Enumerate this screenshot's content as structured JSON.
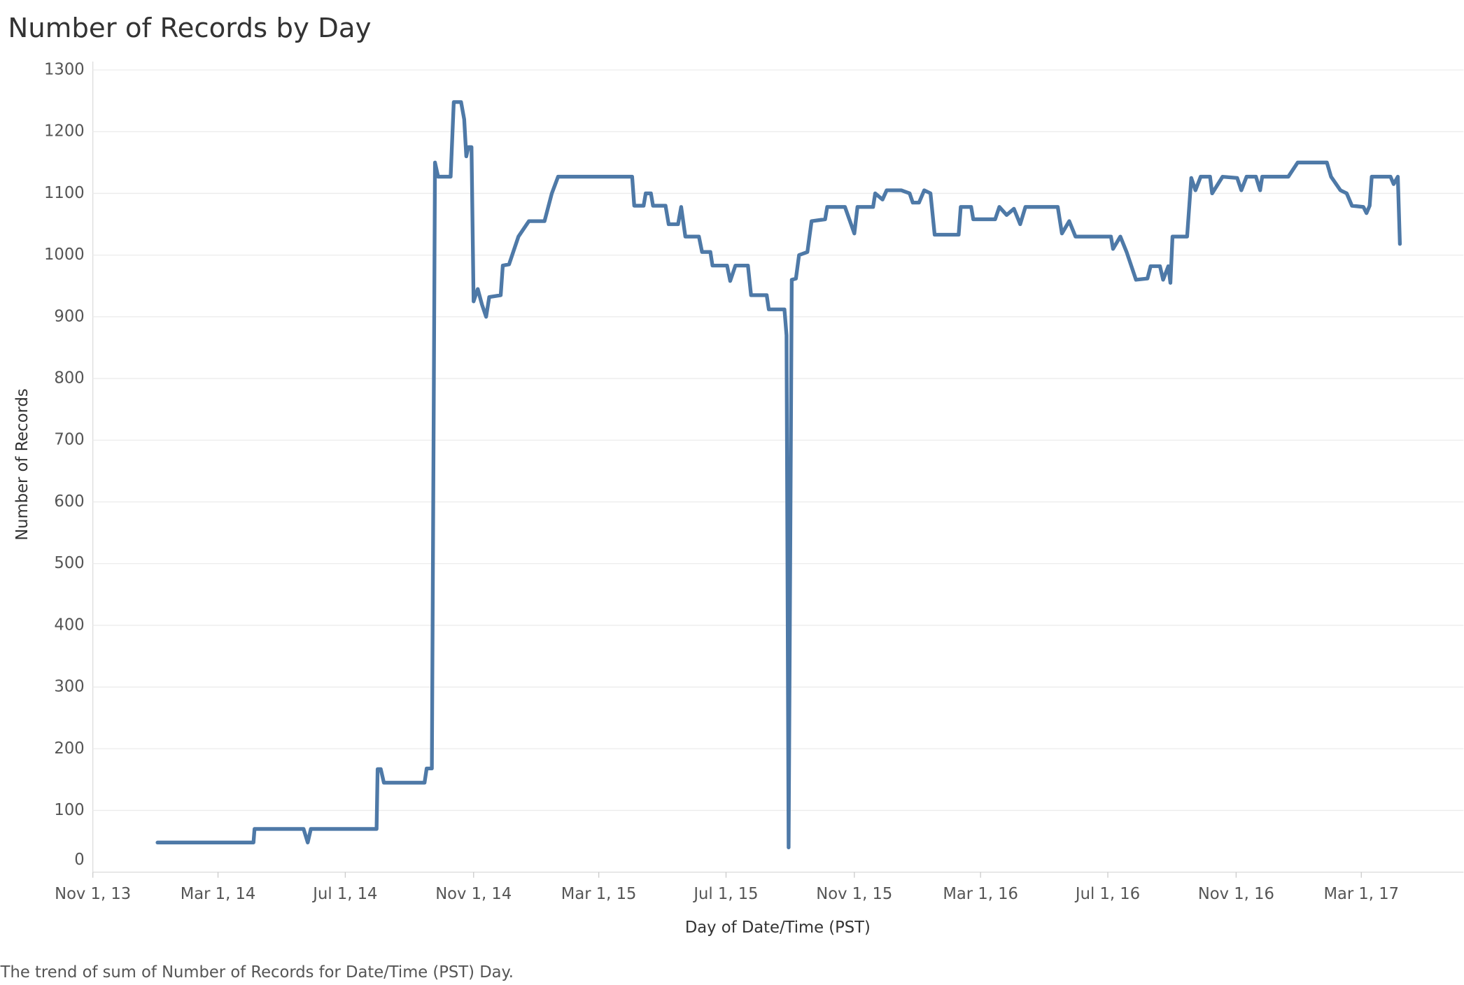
{
  "chart_data": {
    "type": "line",
    "title": "Number of Records by Day",
    "x_label": "Day of Date/Time (PST)",
    "y_label": "Number of Records",
    "caption": "The trend of sum of Number of Records for Date/Time (PST) Day.",
    "color": "#4e79a7",
    "grid": true,
    "xlim": [
      "2013-11-01",
      "2017-06-07"
    ],
    "xticks": [
      {
        "value": "2013-11-01",
        "label": "Nov 1, 13"
      },
      {
        "value": "2014-03-01",
        "label": "Mar 1, 14"
      },
      {
        "value": "2014-07-01",
        "label": "Jul 1, 14"
      },
      {
        "value": "2014-11-01",
        "label": "Nov 1, 14"
      },
      {
        "value": "2015-03-01",
        "label": "Mar 1, 15"
      },
      {
        "value": "2015-07-01",
        "label": "Jul 1, 15"
      },
      {
        "value": "2015-11-01",
        "label": "Nov 1, 15"
      },
      {
        "value": "2016-03-01",
        "label": "Mar 1, 16"
      },
      {
        "value": "2016-07-01",
        "label": "Jul 1, 16"
      },
      {
        "value": "2016-11-01",
        "label": "Nov 1, 16"
      },
      {
        "value": "2017-03-01",
        "label": "Mar 1, 17"
      }
    ],
    "ylim": [
      0,
      1300
    ],
    "yticks": [
      0,
      100,
      200,
      300,
      400,
      500,
      600,
      700,
      800,
      900,
      1000,
      1100,
      1200,
      1300
    ],
    "x": [
      "2014-01-02",
      "2014-04-04",
      "2014-04-05",
      "2014-05-22",
      "2014-05-26",
      "2014-05-29",
      "2014-07-31",
      "2014-08-01",
      "2014-08-04",
      "2014-08-07",
      "2014-09-15",
      "2014-09-17",
      "2014-09-22",
      "2014-09-25",
      "2014-09-28",
      "2014-10-10",
      "2014-10-13",
      "2014-10-20",
      "2014-10-23",
      "2014-10-25",
      "2014-10-27",
      "2014-10-30",
      "2014-11-01",
      "2014-11-05",
      "2014-11-09",
      "2014-11-13",
      "2014-11-16",
      "2014-11-27",
      "2014-11-29",
      "2014-12-05",
      "2014-12-08",
      "2014-12-14",
      "2014-12-24",
      "2015-01-08",
      "2015-01-15",
      "2015-01-21",
      "2015-04-02",
      "2015-04-04",
      "2015-04-13",
      "2015-04-15",
      "2015-04-20",
      "2015-04-22",
      "2015-05-04",
      "2015-05-07",
      "2015-05-16",
      "2015-05-19",
      "2015-05-23",
      "2015-06-05",
      "2015-06-08",
      "2015-06-16",
      "2015-06-18",
      "2015-07-02",
      "2015-07-05",
      "2015-07-10",
      "2015-07-22",
      "2015-07-25",
      "2015-08-09",
      "2015-08-11",
      "2015-08-26",
      "2015-08-28",
      "2015-08-30",
      "2015-09-02",
      "2015-09-06",
      "2015-09-09",
      "2015-09-17",
      "2015-09-21",
      "2015-10-04",
      "2015-10-06",
      "2015-10-23",
      "2015-11-01",
      "2015-11-04",
      "2015-11-19",
      "2015-11-21",
      "2015-11-28",
      "2015-12-02",
      "2015-12-16",
      "2015-12-24",
      "2015-12-27",
      "2016-01-02",
      "2016-01-07",
      "2016-01-13",
      "2016-01-17",
      "2016-02-09",
      "2016-02-11",
      "2016-02-21",
      "2016-02-23",
      "2016-03-15",
      "2016-03-19",
      "2016-03-26",
      "2016-04-02",
      "2016-04-08",
      "2016-04-13",
      "2016-05-14",
      "2016-05-18",
      "2016-05-25",
      "2016-05-31",
      "2016-07-04",
      "2016-07-06",
      "2016-07-13",
      "2016-07-19",
      "2016-07-28",
      "2016-08-08",
      "2016-08-11",
      "2016-08-20",
      "2016-08-23",
      "2016-08-28",
      "2016-08-30",
      "2016-09-01",
      "2016-09-15",
      "2016-09-19",
      "2016-09-23",
      "2016-09-28",
      "2016-10-07",
      "2016-10-09",
      "2016-10-19",
      "2016-11-02",
      "2016-11-06",
      "2016-11-11",
      "2016-11-20",
      "2016-11-24",
      "2016-11-26",
      "2016-12-21",
      "2016-12-30",
      "2017-01-27",
      "2017-01-31",
      "2017-02-09",
      "2017-02-15",
      "2017-02-20",
      "2017-03-03",
      "2017-03-06",
      "2017-03-09",
      "2017-03-11",
      "2017-03-29",
      "2017-04-01",
      "2017-04-05",
      "2017-04-07"
    ],
    "values": [
      48,
      48,
      70,
      70,
      48,
      70,
      70,
      167,
      167,
      145,
      145,
      168,
      168,
      1150,
      1127,
      1127,
      1248,
      1248,
      1220,
      1160,
      1175,
      1175,
      925,
      945,
      920,
      900,
      932,
      935,
      983,
      985,
      1000,
      1030,
      1055,
      1055,
      1100,
      1127,
      1127,
      1080,
      1080,
      1100,
      1100,
      1080,
      1080,
      1050,
      1050,
      1078,
      1030,
      1030,
      1005,
      1005,
      983,
      983,
      958,
      983,
      983,
      935,
      935,
      912,
      912,
      870,
      40,
      960,
      962,
      1000,
      1005,
      1055,
      1058,
      1078,
      1078,
      1035,
      1078,
      1078,
      1100,
      1090,
      1105,
      1105,
      1100,
      1085,
      1085,
      1105,
      1100,
      1033,
      1033,
      1078,
      1078,
      1058,
      1058,
      1078,
      1065,
      1075,
      1050,
      1078,
      1078,
      1035,
      1055,
      1030,
      1030,
      1010,
      1030,
      1005,
      960,
      962,
      982,
      982,
      960,
      982,
      955,
      1030,
      1030,
      1125,
      1105,
      1127,
      1127,
      1100,
      1127,
      1125,
      1105,
      1127,
      1127,
      1105,
      1127,
      1127,
      1150,
      1150,
      1127,
      1105,
      1100,
      1080,
      1078,
      1068,
      1080,
      1127,
      1127,
      1115,
      1127,
      1018
    ]
  }
}
